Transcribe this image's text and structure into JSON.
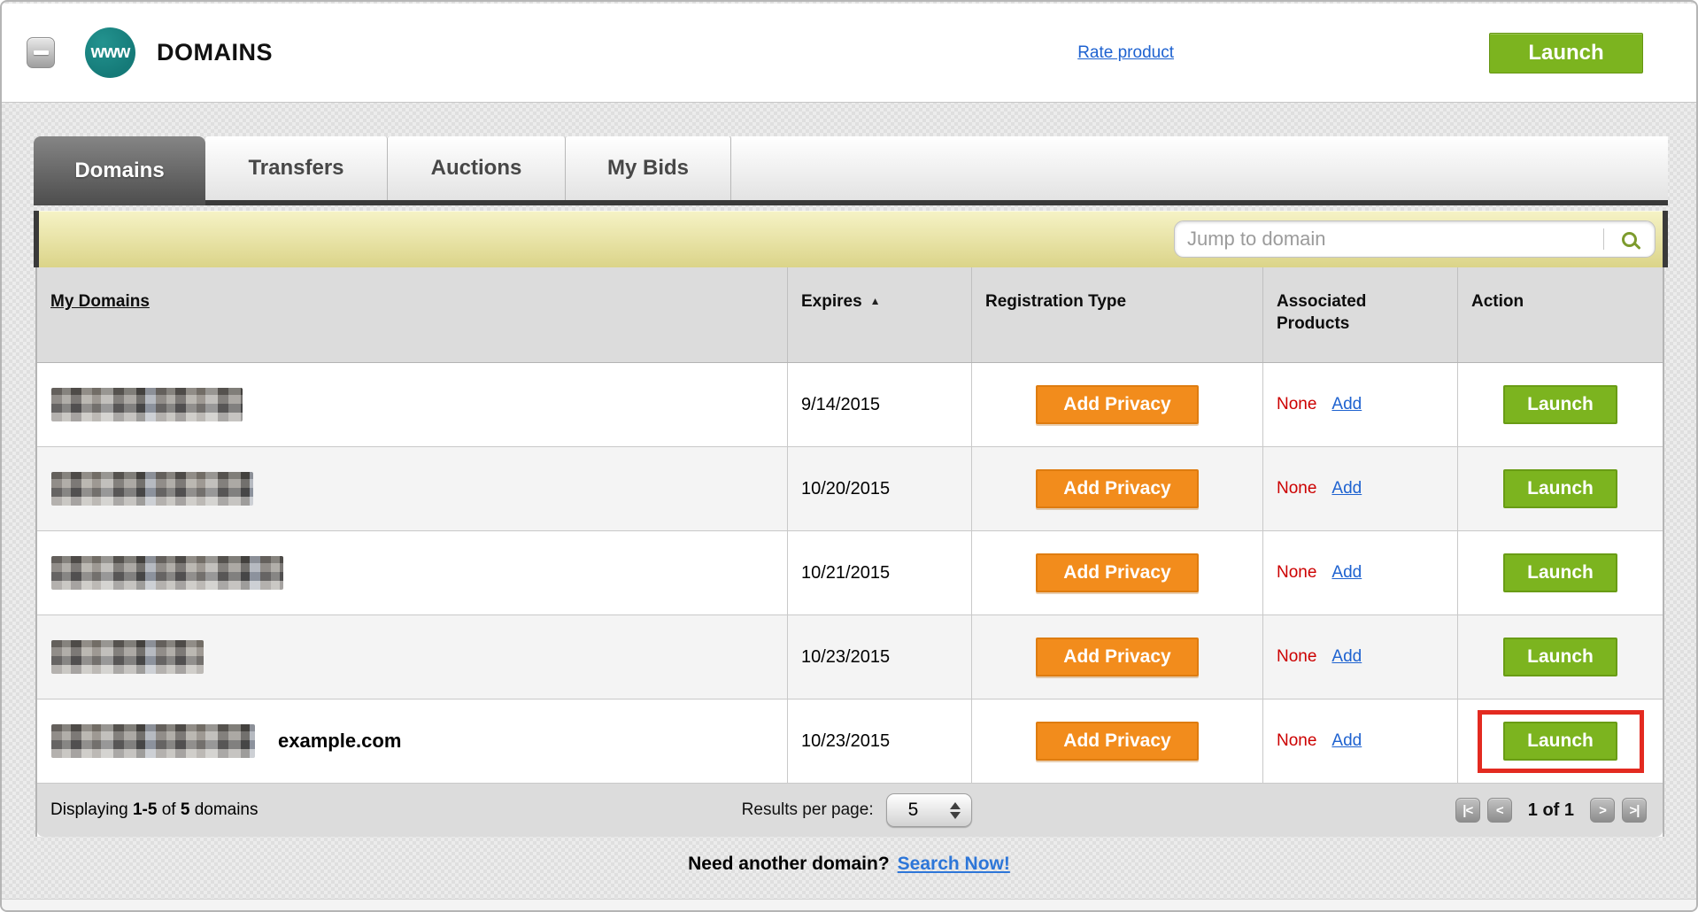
{
  "header": {
    "logo_text": "www",
    "title": "DOMAINS",
    "rate_product_label": "Rate product",
    "launch_label": "Launch"
  },
  "tabs": [
    {
      "label": "Domains",
      "active": true
    },
    {
      "label": "Transfers",
      "active": false
    },
    {
      "label": "Auctions",
      "active": false
    },
    {
      "label": "My Bids",
      "active": false
    }
  ],
  "search": {
    "placeholder": "Jump to domain"
  },
  "table": {
    "columns": [
      "My Domains",
      "Expires",
      "Registration Type",
      "Associated Products",
      "Action"
    ],
    "sort_icon": "▲",
    "sorted_column": "Expires",
    "rows": [
      {
        "domain_redacted": true,
        "blur_width": 216,
        "expires": "9/14/2015",
        "registration_action": "Add Privacy",
        "associated_value": "None",
        "associated_link": "Add",
        "action": "Launch",
        "highlighted": false
      },
      {
        "domain_redacted": true,
        "blur_width": 228,
        "expires": "10/20/2015",
        "registration_action": "Add Privacy",
        "associated_value": "None",
        "associated_link": "Add",
        "action": "Launch",
        "highlighted": false
      },
      {
        "domain_redacted": true,
        "blur_width": 262,
        "expires": "10/21/2015",
        "registration_action": "Add Privacy",
        "associated_value": "None",
        "associated_link": "Add",
        "action": "Launch",
        "highlighted": false
      },
      {
        "domain_redacted": true,
        "blur_width": 172,
        "expires": "10/23/2015",
        "registration_action": "Add Privacy",
        "associated_value": "None",
        "associated_link": "Add",
        "action": "Launch",
        "highlighted": false
      },
      {
        "domain_redacted": true,
        "blur_width": 230,
        "domain_label": "example.com",
        "expires": "10/23/2015",
        "registration_action": "Add Privacy",
        "associated_value": "None",
        "associated_link": "Add",
        "action": "Launch",
        "highlighted": true
      }
    ]
  },
  "footer": {
    "displaying_prefix": "Displaying",
    "displaying_range": "1-5",
    "displaying_of": "of",
    "displaying_total": "5",
    "displaying_suffix": "domains",
    "results_per_page_label": "Results per page:",
    "results_per_page_value": "5",
    "pagination": {
      "first_icon": "|<",
      "prev_icon": "<",
      "current_page": "1",
      "of_label": "of",
      "total_pages": "1",
      "next_icon": ">",
      "last_icon": ">|"
    }
  },
  "bottom": {
    "prompt": "Need another domain?",
    "link": "Search Now!"
  },
  "icons": {
    "collapse": "minus",
    "search": "magnifier",
    "sort_asc": "▲"
  },
  "colors": {
    "accent_green": "#7CB41F",
    "accent_orange": "#F28C1C",
    "highlight_red": "#E32A20",
    "link_blue": "#1E62D0",
    "none_red": "#CC0000",
    "logo_teal": "#157A78",
    "search_bar_yellow": "#E9E2A0"
  }
}
